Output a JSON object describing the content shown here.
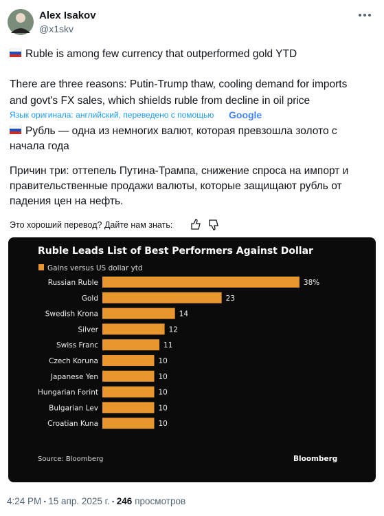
{
  "author": {
    "name": "Alex Isakov",
    "handle": "@x1skv"
  },
  "tweet": {
    "paragraphs": [
      [
        "Ruble is among few currency that outperformed gold YTD"
      ],
      [
        "There are three reasons: Putin-Trump thaw, cooling demand for imports",
        "and govt's FX sales, which shields ruble from decline in oil price"
      ]
    ]
  },
  "translation": {
    "note": "Язык оригинала: английский, переведено с помощью",
    "provider": "Google",
    "paragraphs": [
      [
        "Рубль — одна из немногих валют, которая превзошла золото с",
        "начала года"
      ],
      [
        "Причин три: оттепель Путина-Трампа, снижение спроса на импорт и",
        "правительственные продажи валюты, которые защищают рубль от",
        "падения цен на нефть."
      ]
    ],
    "feedback": "Это хороший перевод? Дайте нам знать:"
  },
  "chart_data": {
    "type": "bar",
    "orientation": "horizontal",
    "title": "Ruble Leads List of Best Performers Against Dollar",
    "categories": [
      "Russian Ruble",
      "Gold",
      "Swedish Krona",
      "Silver",
      "Swiss Franc",
      "Czech Koruna",
      "Japanese Yen",
      "Hungarian Forint",
      "Bulgarian Lev",
      "Croatian Kuna"
    ],
    "series": [
      {
        "name": "Gains versus US dollar ytd",
        "color": "#e8962e",
        "values": [
          38,
          23,
          14,
          12,
          11,
          10,
          10,
          10,
          10,
          10
        ],
        "value_labels": [
          "38%",
          "23",
          "14",
          "12",
          "11",
          "10",
          "10",
          "10",
          "10",
          "10"
        ]
      }
    ],
    "source": "Source: Bloomberg",
    "brand": "Bloomberg"
  },
  "footer": {
    "time": "4:24 PM",
    "date": "15 апр. 2025 г.",
    "views": "246",
    "views_label": "просмотров"
  }
}
